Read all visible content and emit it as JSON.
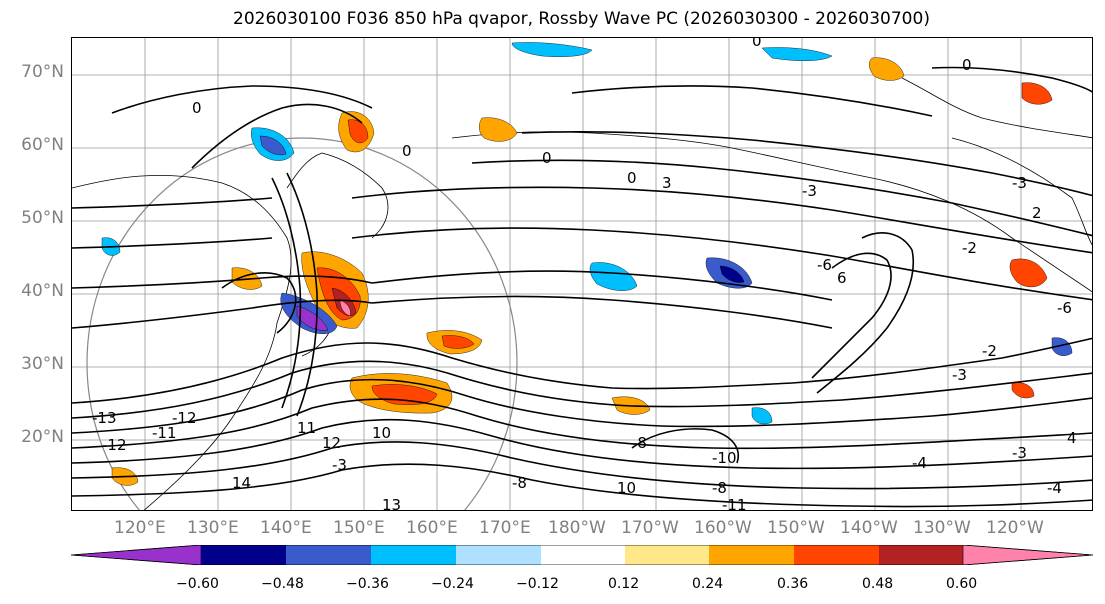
{
  "title": "2026030100 F036 850 hPa qvapor, Rossby Wave PC (2026030300 - 2026030700)",
  "map": {
    "projection": "cylindrical",
    "lon_range": [
      110,
      250
    ],
    "lat_range": [
      10,
      75
    ],
    "lat_labels": [
      "70°N",
      "60°N",
      "50°N",
      "40°N",
      "30°N",
      "20°N"
    ],
    "lon_labels": [
      "120°E",
      "130°E",
      "140°E",
      "150°E",
      "160°E",
      "170°E",
      "180°W",
      "170°W",
      "160°W",
      "150°W",
      "140°W",
      "130°W",
      "120°W"
    ]
  },
  "contour_labels": [
    "0",
    "0",
    "0",
    "0",
    "0",
    "0",
    "-3",
    "-3",
    "-2",
    "-2",
    "2",
    "-6",
    "6",
    "-6",
    "-3",
    "3",
    "-3",
    "10",
    "11",
    "12",
    "13",
    "-13",
    "14",
    "-11",
    "-10",
    "-8",
    "-8",
    "-4",
    "-4",
    "4",
    "-3",
    "-8",
    "-12",
    "10",
    "-11",
    "-12"
  ],
  "colorbar": {
    "ticks": [
      "−0.60",
      "−0.48",
      "−0.36",
      "−0.24",
      "−0.12",
      "0.12",
      "0.24",
      "0.36",
      "0.48",
      "0.60"
    ],
    "colors": [
      "#9932cc",
      "#00008b",
      "#3a5bcc",
      "#00bfff",
      "#b0e0ff",
      "#ffffff",
      "#ffe88a",
      "#ffa500",
      "#ff4500",
      "#b22222",
      "#ff82ab"
    ]
  }
}
